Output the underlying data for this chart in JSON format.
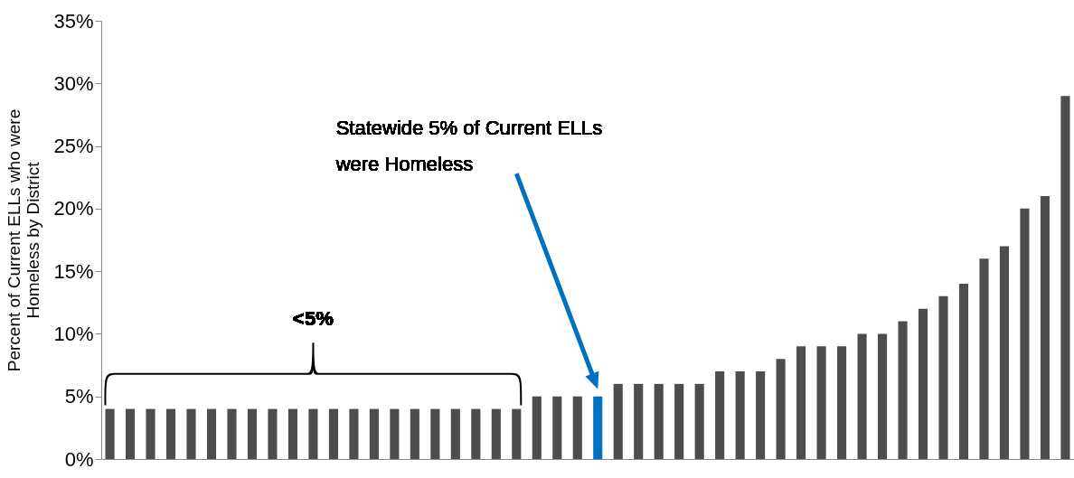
{
  "chart_data": {
    "type": "bar",
    "ylabel": "Percent of Current ELLs who were\nHomeless by District",
    "categories": [
      null,
      null,
      null,
      null,
      null,
      null,
      null,
      null,
      null,
      null,
      null,
      null,
      null,
      null,
      null,
      null,
      null,
      null,
      null,
      null,
      null,
      null,
      null,
      null,
      null,
      null,
      null,
      null,
      null,
      null,
      null,
      null,
      null,
      null,
      null,
      null,
      null,
      null,
      null,
      null,
      null,
      null,
      null,
      null,
      null,
      null,
      null,
      null
    ],
    "values": [
      4,
      4,
      4,
      4,
      4,
      4,
      4,
      4,
      4,
      4,
      4,
      4,
      4,
      4,
      4,
      4,
      4,
      4,
      4,
      4,
      4,
      5,
      5,
      5,
      5,
      6,
      6,
      6,
      6,
      6,
      7,
      7,
      7,
      8,
      9,
      9,
      9,
      10,
      10,
      11,
      12,
      13,
      14,
      16,
      17,
      20,
      21,
      29
    ],
    "colors": [
      "#4d4d4d",
      "#4d4d4d",
      "#4d4d4d",
      "#4d4d4d",
      "#4d4d4d",
      "#4d4d4d",
      "#4d4d4d",
      "#4d4d4d",
      "#4d4d4d",
      "#4d4d4d",
      "#4d4d4d",
      "#4d4d4d",
      "#4d4d4d",
      "#4d4d4d",
      "#4d4d4d",
      "#4d4d4d",
      "#4d4d4d",
      "#4d4d4d",
      "#4d4d4d",
      "#4d4d4d",
      "#4d4d4d",
      "#4d4d4d",
      "#4d4d4d",
      "#4d4d4d",
      "#0070c0",
      "#4d4d4d",
      "#4d4d4d",
      "#4d4d4d",
      "#4d4d4d",
      "#4d4d4d",
      "#4d4d4d",
      "#4d4d4d",
      "#4d4d4d",
      "#4d4d4d",
      "#4d4d4d",
      "#4d4d4d",
      "#4d4d4d",
      "#4d4d4d",
      "#4d4d4d",
      "#4d4d4d",
      "#4d4d4d",
      "#4d4d4d",
      "#4d4d4d",
      "#4d4d4d",
      "#4d4d4d",
      "#4d4d4d",
      "#4d4d4d",
      "#4d4d4d"
    ],
    "ylim": [
      0,
      35
    ],
    "yticks": [
      {
        "value": 0,
        "label": "0%"
      },
      {
        "value": 5,
        "label": "5%"
      },
      {
        "value": 10,
        "label": "10%"
      },
      {
        "value": 15,
        "label": "15%"
      },
      {
        "value": 20,
        "label": "20%"
      },
      {
        "value": 25,
        "label": "25%"
      },
      {
        "value": 30,
        "label": "30%"
      },
      {
        "value": 35,
        "label": "35%"
      }
    ],
    "tick_labels": "y",
    "grid": false,
    "annotations": [
      "<5%",
      "Statewide 5% of Current ELLs\nwere Homeless"
    ]
  }
}
